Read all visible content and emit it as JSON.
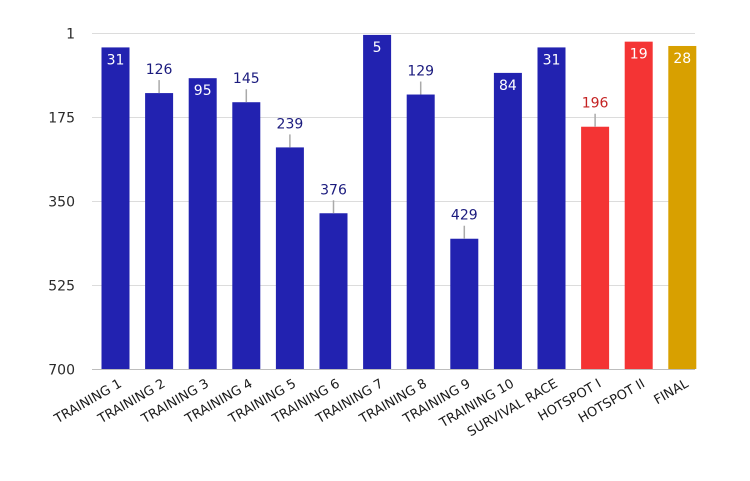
{
  "chart_data": {
    "type": "bar",
    "y_inverted": true,
    "ylim": [
      1,
      700
    ],
    "yticks": [
      1,
      175,
      350,
      525,
      700
    ],
    "ytick_labels": [
      "1",
      "175",
      "350",
      "525",
      "700"
    ],
    "grid": true,
    "legend": "none",
    "categories": [
      "TRAINING 1",
      "TRAINING 2",
      "TRAINING 3",
      "TRAINING 4",
      "TRAINING 5",
      "TRAINING 6",
      "TRAINING 7",
      "TRAINING 8",
      "TRAINING 9",
      "TRAINING 10",
      "SURVIVAL RACE",
      "HOTSPOT I",
      "HOTSPOT II",
      "FINAL"
    ],
    "values": [
      31,
      126,
      95,
      145,
      239,
      376,
      5,
      129,
      429,
      84,
      31,
      196,
      19,
      28
    ],
    "colors": [
      "#2222b0",
      "#2222b0",
      "#2222b0",
      "#2222b0",
      "#2222b0",
      "#2222b0",
      "#2222b0",
      "#2222b0",
      "#2222b0",
      "#2222b0",
      "#2222b0",
      "#f43434",
      "#f43434",
      "#d8a000"
    ],
    "label_inside": [
      true,
      false,
      true,
      false,
      false,
      false,
      true,
      false,
      false,
      true,
      true,
      false,
      true,
      true
    ],
    "label_colors": [
      "#ffffff",
      "#1b1b7e",
      "#ffffff",
      "#1b1b7e",
      "#1b1b7e",
      "#1b1b7e",
      "#ffffff",
      "#1b1b7e",
      "#1b1b7e",
      "#ffffff",
      "#ffffff",
      "#c42222",
      "#ffffff",
      "#ffffff"
    ],
    "title": "",
    "xlabel": "",
    "ylabel": ""
  }
}
